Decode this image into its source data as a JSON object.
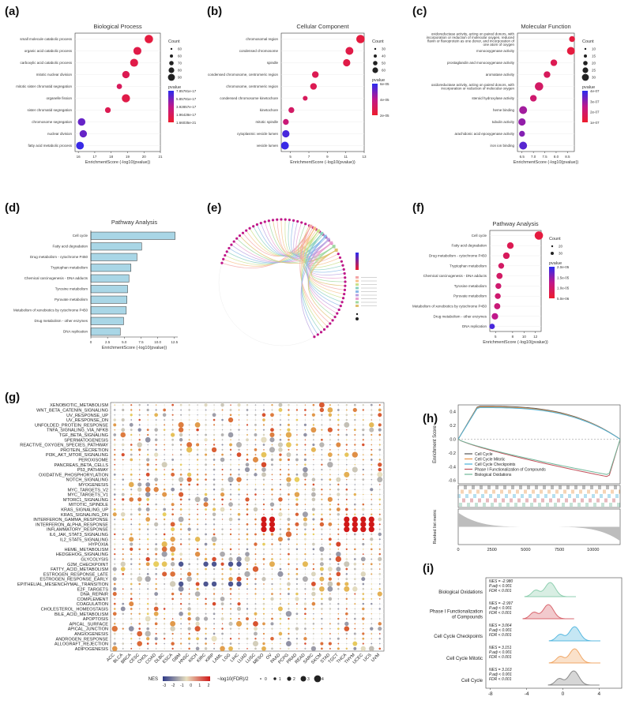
{
  "panel_labels": [
    "(a)",
    "(b)",
    "(c)",
    "(d)",
    "(e)",
    "(f)",
    "(g)",
    "(h)",
    "(i)"
  ],
  "panelA": {
    "title": "Biological Process",
    "terms": [
      "small molecule catabolic process",
      "organic acid catabolic process",
      "carboxylic acid catabolic process",
      "mitotic nuclear division",
      "mitotic sister chromatid segregation",
      "organelle fission",
      "sister chromatid segregation",
      "chromosome segregation",
      "nuclear division",
      "fatty acid metabolic process"
    ],
    "x": [
      20.3,
      19.6,
      19.4,
      18.9,
      18.5,
      18.9,
      17.8,
      16.2,
      16.3,
      16.1
    ],
    "size": [
      80,
      70,
      70,
      55,
      20,
      75,
      25,
      60,
      55,
      65
    ],
    "padj_rank": [
      0.1,
      0.15,
      0.15,
      0.2,
      0.25,
      0.15,
      0.2,
      0.8,
      0.8,
      0.95
    ],
    "xticks": [
      "16",
      "17",
      "18",
      "19",
      "20",
      "21"
    ],
    "xlim": [
      15.8,
      21
    ],
    "xlabel": "EnrichmentScore (-log10(pvalue))",
    "count_title": "Count",
    "count_levels": [
      "60",
      "60",
      "70",
      "80",
      "90"
    ],
    "pvalue_title": "pvalue",
    "pvalue_levels": [
      "7.85781e-17",
      "5.85781e-17",
      "3.92857e-17",
      "1.96428e-17",
      "1.66035e-21"
    ]
  },
  "panelB": {
    "title": "Cellular Component",
    "terms": [
      "chromosomal region",
      "condensed chromosome",
      "spindle",
      "condensed chromosome, centromeric region",
      "chromosome, centromeric region",
      "condensed chromosome kinetochore",
      "kinetochore",
      "mitotic spindle",
      "cytoplasmic vesicle lumen",
      "vesicle lumen"
    ],
    "x": [
      12.6,
      11.4,
      11.1,
      7.7,
      7.5,
      6.6,
      5.1,
      4.5,
      4.5,
      4.4
    ],
    "size": [
      60,
      50,
      40,
      30,
      30,
      10,
      20,
      20,
      40,
      50
    ],
    "padj_rank": [
      0.1,
      0.15,
      0.15,
      0.2,
      0.2,
      0.25,
      0.3,
      0.4,
      0.9,
      0.95
    ],
    "xticks": [
      "5",
      "7",
      "9",
      "11",
      "13"
    ],
    "xlim": [
      4,
      13
    ],
    "xlabel": "EnrichmentScore (-log10(pvalue))",
    "count_title": "Count",
    "count_levels": [
      "30",
      "40",
      "50",
      "60"
    ],
    "pvalue_title": "pvalue",
    "pvalue_levels": [
      "6e-05",
      "4e-05",
      "2e-05"
    ]
  },
  "panelC": {
    "title": "Molecular Function",
    "terms": [
      "oxidoreductase activity, acting on paired donors, with incorporation or reduction of molecular oxygen, reduced flavin or flavoprotein as one donor, and incorporation of one atom of oxygen",
      "monooxygenase activity",
      "prostaglandin and monooxygenase activity",
      "aromatase activity",
      "oxidoreductase activity, acting on paired donors, with incorporation or reduction of molecular oxygen",
      "steroid hydroxylase activity",
      "heme binding",
      "tubulin activity",
      "arachidonic acid epoxygenase activity",
      "iron ion binding"
    ],
    "x": [
      8.7,
      8.65,
      7.9,
      7.6,
      7.25,
      7.0,
      6.55,
      6.5,
      6.5,
      6.55
    ],
    "size": [
      10,
      25,
      15,
      15,
      30,
      15,
      25,
      20,
      10,
      25
    ],
    "padj_rank": [
      0.1,
      0.1,
      0.2,
      0.25,
      0.3,
      0.35,
      0.6,
      0.65,
      0.7,
      0.85
    ],
    "xticks": [
      "6.5",
      "7.0",
      "7.5",
      "8.0",
      "8.5"
    ],
    "xlim": [
      6.3,
      8.8
    ],
    "xlabel": "EnrichmentScore (-log10(pvalue))",
    "count_title": "Count",
    "count_levels": [
      "10",
      "15",
      "20",
      "25",
      "30"
    ],
    "pvalue_title": "pvalue",
    "pvalue_levels": [
      "4e-07",
      "3e-07",
      "2e-07",
      "1e-07"
    ]
  },
  "panelD": {
    "title": "Pathway Analysis",
    "terms": [
      "Cell cycle",
      "Fatty acid degradation",
      "Drug metabolism - cytochrome P450",
      "Tryptophan metabolism",
      "Chemical carcinogenesis - DNA adducts",
      "Tyrosine metabolism",
      "Pyruvate metabolism",
      "Metabolism of xenobiotics by cytochrome P450",
      "Drug metabolism - other enzymes",
      "DNA replication"
    ],
    "values": [
      12.6,
      7.6,
      6.9,
      6.0,
      5.7,
      5.5,
      5.4,
      5.3,
      4.9,
      4.4
    ],
    "xticks": [
      "0",
      "2.5",
      "5.0",
      "7.5",
      "10.0",
      "12.5"
    ],
    "xlim": [
      0,
      13
    ],
    "xlabel": "EnrichmentScore (-log10(pvalue))"
  },
  "panelF": {
    "title": "Pathway Analysis",
    "terms": [
      "Cell cycle",
      "Fatty acid degradation",
      "Drug metabolism - cytochrome P450",
      "Tryptophan metabolism",
      "Chemical carcinogenesis - DNA adducts",
      "Tyrosine metabolism",
      "Pyruvate metabolism",
      "Metabolism of xenobiotics by cytochrome P450",
      "Drug metabolism - other enzymes",
      "DNA replication"
    ],
    "x": [
      12.6,
      7.6,
      6.9,
      6.0,
      5.7,
      5.5,
      5.4,
      5.3,
      4.9,
      4.4
    ],
    "size": [
      30,
      15,
      15,
      10,
      12,
      10,
      10,
      12,
      14,
      8
    ],
    "padj_rank": [
      0.1,
      0.2,
      0.25,
      0.3,
      0.3,
      0.35,
      0.35,
      0.4,
      0.5,
      0.9
    ],
    "xticks": [
      "5",
      "8",
      "10",
      "12"
    ],
    "xlim": [
      4,
      13
    ],
    "xlabel": "EnrichmentScore (-log10(pvalue))",
    "count_title": "Count",
    "count_levels": [
      "20",
      "30"
    ],
    "pvalue_title": "pvalue",
    "pvalue_levels": [
      "2.0e-05",
      "1.5e-05",
      "1.0e-05",
      "5.0e-06"
    ]
  },
  "panelG": {
    "hallmarks": [
      "XENOBIOTIC_METABOLISM",
      "WNT_BETA_CATENIN_SIGNALING",
      "UV_RESPONSE_UP",
      "UV_RESPONSE_DN",
      "UNFOLDED_PROTEIN_RESPONSE",
      "TNFA_SIGNALING_VIA_NFKB",
      "TGF_BETA_SIGNALING",
      "SPERMATOGENESIS",
      "REACTIVE_OXYGEN_SPECIES_PATHWAY",
      "PROTEIN_SECRETION",
      "PI3K_AKT_MTOR_SIGNALING",
      "PEROXISOME",
      "PANCREAS_BETA_CELLS",
      "P53_PATHWAY",
      "OXIDATIVE_PHOSPHORYLATION",
      "NOTCH_SIGNALING",
      "MYOGENESIS",
      "MYC_TARGETS_V2",
      "MYC_TARGETS_V1",
      "MTORC1_SIGNALING",
      "MITOTIC_SPINDLE",
      "KRAS_SIGNALING_UP",
      "KRAS_SIGNALING_DN",
      "INTERFERON_GAMMA_RESPONSE",
      "INTERFERON_ALPHA_RESPONSE",
      "INFLAMMATORY_RESPONSE",
      "IL6_JAK_STAT3_SIGNALING",
      "IL2_STAT5_SIGNALING",
      "HYPOXIA",
      "HEME_METABOLISM",
      "HEDGEHOG_SIGNALING",
      "GLYCOLYSIS",
      "G2M_CHECKPOINT",
      "FATTY_ACID_METABOLISM",
      "ESTROGEN_RESPONSE_LATE",
      "ESTROGEN_RESPONSE_EARLY",
      "EPITHELIAL_MESENCHYMAL_TRANSITION",
      "E2F_TARGETS",
      "DNA_REPAIR",
      "COMPLEMENT",
      "COAGULATION",
      "CHOLESTEROL_HOMEOSTASIS",
      "BILE_ACID_METABOLISM",
      "APOPTOSIS",
      "APICAL_SURFACE",
      "APICAL_JUNCTION",
      "ANGIOGENESIS",
      "ANDROGEN_RESPONSE",
      "ALLOGRAFT_REJECTION",
      "ADIPOGENESIS"
    ],
    "cancers": [
      "ACC",
      "BLCA",
      "BRCA",
      "CESC",
      "CHOL",
      "COAD",
      "DLBC",
      "ESCA",
      "GBM",
      "HNSC",
      "KICH",
      "KIRC",
      "KIRP",
      "LAML",
      "LGG",
      "LIHC",
      "LUAD",
      "LUSC",
      "MESO",
      "OV",
      "PAAD",
      "PCPG",
      "PRAD",
      "READ",
      "SARC",
      "SKCM",
      "STAD",
      "TGCT",
      "THCA",
      "THYM",
      "UCEC",
      "UCS",
      "UVM"
    ],
    "nes_title": "NES",
    "nes_ticks": [
      "-3",
      "-2",
      "-1",
      "0",
      "1",
      "2"
    ],
    "size_title": "~log10(FDR)/2",
    "size_levels": [
      "0",
      "1",
      "2",
      "3",
      "4"
    ]
  },
  "panelH": {
    "ylabel": "Enrichment Score",
    "ylabel2": "Ranked list metric",
    "yticks": [
      "0.4",
      "0.2",
      "0.0",
      "-0.2",
      "-0.4",
      "-0.6"
    ],
    "xticks": [
      "0",
      "2500",
      "5000",
      "7500",
      "10000"
    ],
    "legend": [
      "Cell Cycle",
      "Cell Cycle Mitotic",
      "Cell Cycle Checkpoints",
      "Phase I Functionalization of Compounds",
      "Biological Oxidations"
    ],
    "colors": [
      "#555555",
      "#e8964a",
      "#4ab0d8",
      "#c0505a",
      "#6fb79a"
    ]
  },
  "panelI": {
    "pathways": [
      "Biological Oxidations",
      "Phase I Functionalization of Compounds",
      "Cell Cycle Checkpoints",
      "Cell Cycle Mitotic",
      "Cell Cycle"
    ],
    "label_lines": [
      [
        "Biological Oxidations"
      ],
      [
        "Phase I Functionalization",
        "of Compounds"
      ],
      [
        "Cell Cycle Checkpoints"
      ],
      [
        "Cell Cycle Mitotic"
      ],
      [
        "Cell Cycle"
      ]
    ],
    "nes": [
      "NES = -2.980",
      "NES = -2.997",
      "NES = 3.064",
      "NES = 3.151",
      "NES = 3.163"
    ],
    "padj": [
      "P.adj < 0.001",
      "P.adj < 0.001",
      "P.adj < 0.001",
      "P.adj < 0.001",
      "P.adj < 0.001"
    ],
    "fdr": [
      "FDR < 0.001",
      "FDR < 0.001",
      "FDR < 0.001",
      "FDR < 0.001",
      "FDR < 0.001"
    ],
    "peak": [
      -1.4,
      -1.6,
      1.3,
      1.3,
      1.2
    ],
    "colors": [
      "#8fcfb0",
      "#d9676f",
      "#59b9e0",
      "#f0a868",
      "#8a8a8a"
    ],
    "xticks": [
      "-8",
      "-4",
      "0",
      "4"
    ]
  }
}
